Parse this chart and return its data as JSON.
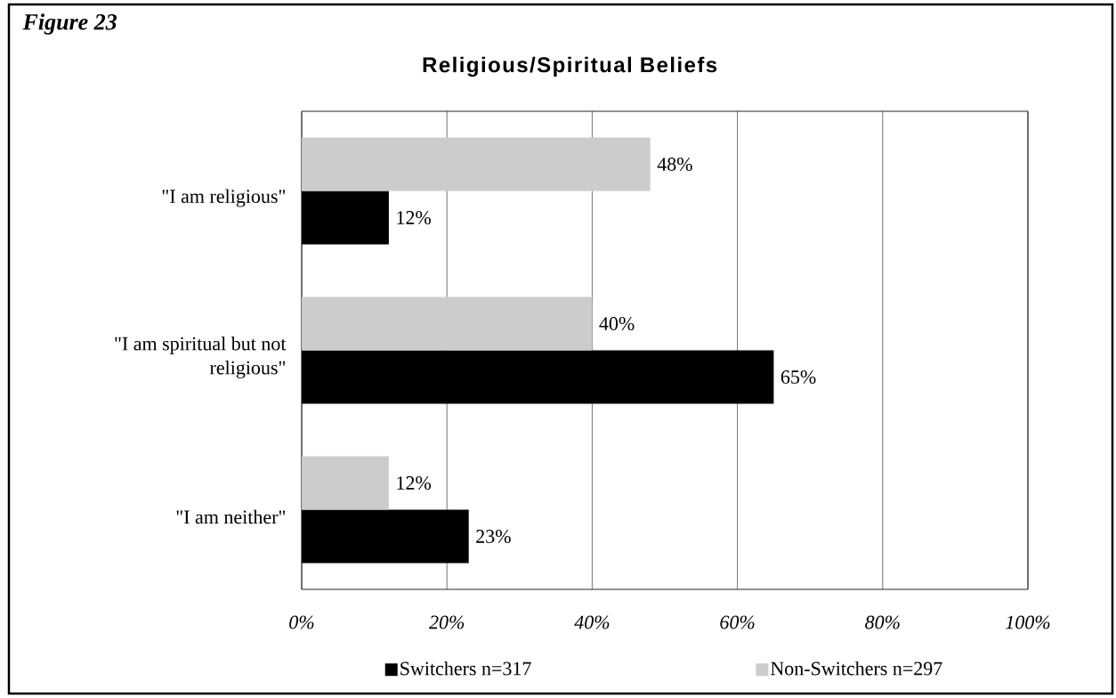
{
  "chart_data": {
    "type": "bar",
    "orientation": "horizontal",
    "title": "Religious/Spiritual Beliefs",
    "annotations": [
      "Figure 23"
    ],
    "categories": [
      "\"I am religious\"",
      "\"I am spiritual but not religious\"",
      "\"I am neither\""
    ],
    "series": [
      {
        "name": "Switchers n=317",
        "color": "#000000",
        "values": [
          12,
          65,
          23
        ],
        "value_labels": [
          "12%",
          "65%",
          "23%"
        ]
      },
      {
        "name": "Non-Switchers n=297",
        "color": "#cccccc",
        "values": [
          48,
          40,
          12
        ],
        "value_labels": [
          "48%",
          "40%",
          "12%"
        ]
      }
    ],
    "xlim": [
      0,
      100
    ],
    "xticks": [
      {
        "value": 0,
        "label": "0%"
      },
      {
        "value": 20,
        "label": "20%"
      },
      {
        "value": 40,
        "label": "40%"
      },
      {
        "value": 60,
        "label": "60%"
      },
      {
        "value": 80,
        "label": "80%"
      },
      {
        "value": 100,
        "label": "100%"
      }
    ],
    "grid": "x",
    "legend": "bottom"
  }
}
